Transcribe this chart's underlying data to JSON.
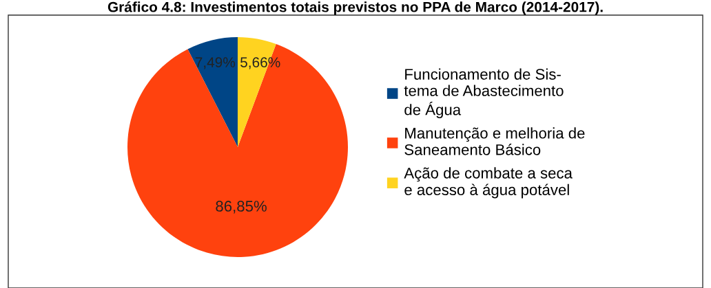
{
  "chart_data": {
    "type": "pie",
    "title": "Gráfico 4.8: Investimentos totais previstos no PPA de Marco (2014-2017).",
    "categories": [
      "Funcionamento de Sis-\ntema de Abastecimento\nde Água",
      "Manutenção e melhoria de\nSaneamento Básico",
      "Ação de combate a seca\ne acesso à água potável"
    ],
    "values": [
      7.49,
      86.85,
      5.66
    ],
    "colors": [
      "#004586",
      "#ff420e",
      "#ffd320"
    ],
    "value_labels": [
      "7,49%",
      "86,85%",
      "5,66%"
    ],
    "legend": "right"
  }
}
